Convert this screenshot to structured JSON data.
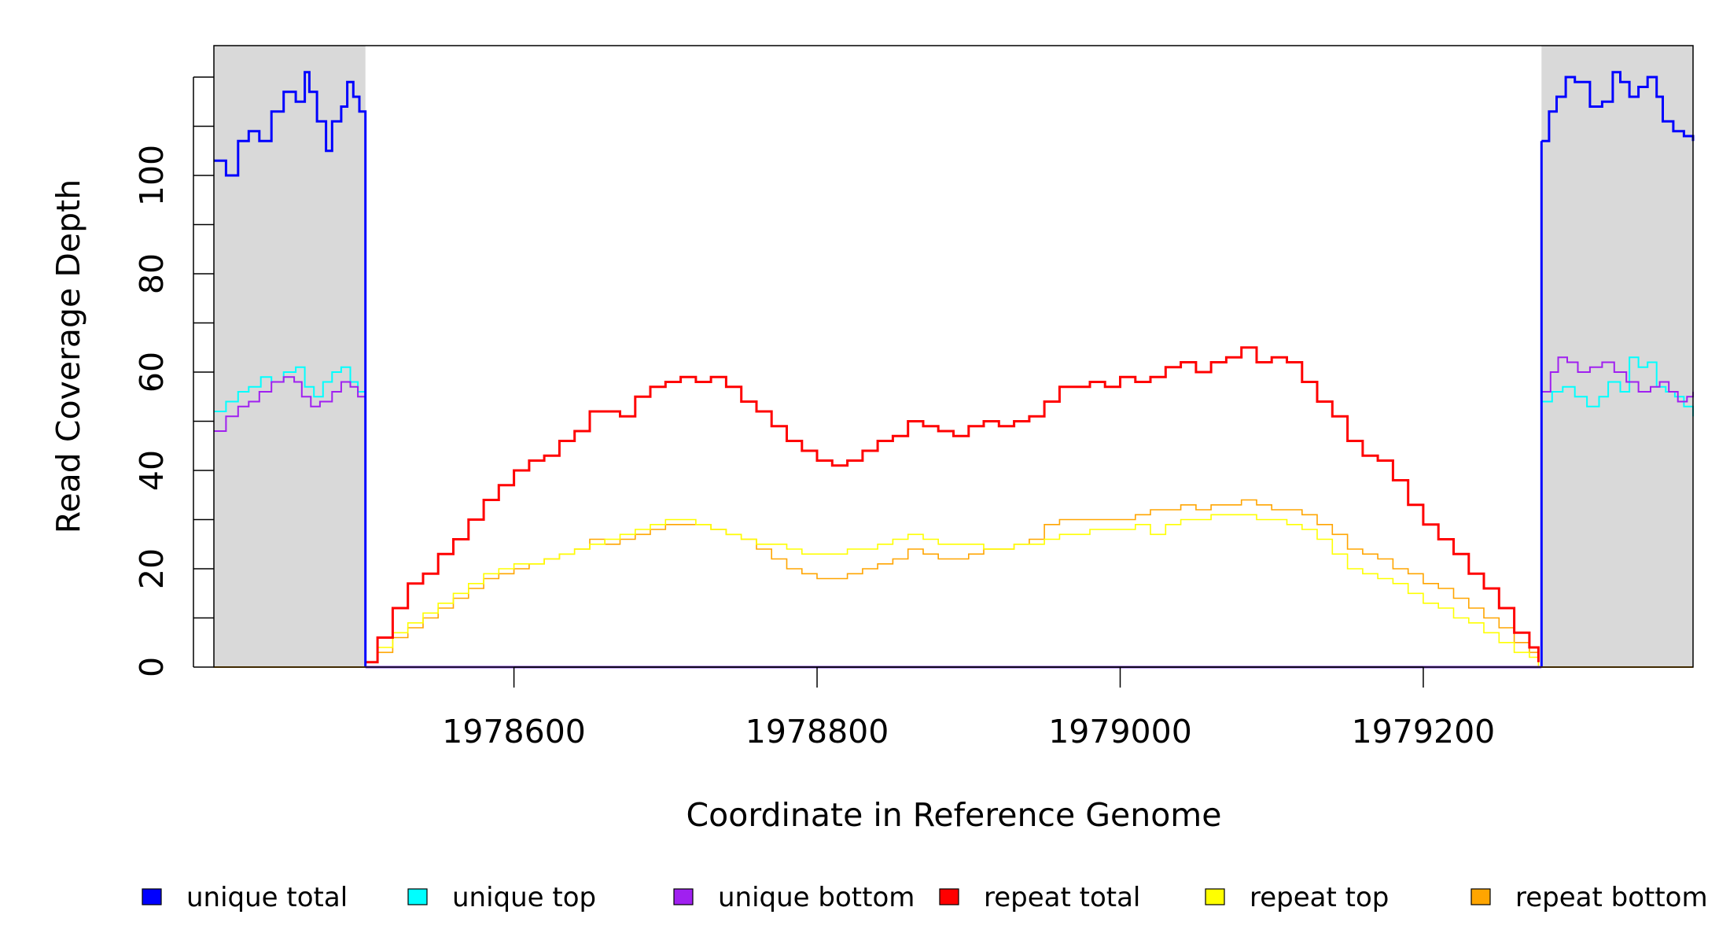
{
  "chart_data": {
    "type": "line",
    "title": "",
    "xlabel": "Coordinate in Reference Genome",
    "ylabel": "Read Coverage Depth",
    "xlim": [
      1978402,
      1979378
    ],
    "ylim": [
      0,
      126
    ],
    "x_ticks": [
      1978600,
      1978800,
      1979000,
      1979200
    ],
    "y_ticks": [
      0,
      20,
      40,
      60,
      80,
      100
    ],
    "grid": false,
    "legend_position": "bottom",
    "shaded_regions": [
      {
        "from": 1978402,
        "to": 1978502,
        "color": "#d9d9d9"
      },
      {
        "from": 1979278,
        "to": 1979378,
        "color": "#d9d9d9"
      }
    ],
    "series": [
      {
        "name": "unique total",
        "color": "#0000ff",
        "width": 3,
        "segments": [
          {
            "x": [
              1978402,
              1978410,
              1978418,
              1978425,
              1978432,
              1978440,
              1978448,
              1978456,
              1978462,
              1978465,
              1978470,
              1978476,
              1978480,
              1978486,
              1978490,
              1978494,
              1978498,
              1978502
            ],
            "y": [
              103,
              100,
              107,
              109,
              107,
              113,
              117,
              115,
              121,
              117,
              111,
              105,
              111,
              114,
              119,
              116,
              113,
              109
            ]
          },
          {
            "x": [
              1978502,
              1978502
            ],
            "y": [
              109,
              0
            ]
          },
          {
            "x": [
              1979278,
              1979278
            ],
            "y": [
              0,
              107
            ]
          },
          {
            "x": [
              1979278,
              1979283,
              1979288,
              1979294,
              1979300,
              1979310,
              1979318,
              1979325,
              1979330,
              1979336,
              1979342,
              1979348,
              1979354,
              1979358,
              1979365,
              1979372,
              1979378
            ],
            "y": [
              107,
              113,
              116,
              120,
              119,
              114,
              115,
              121,
              119,
              116,
              118,
              120,
              116,
              111,
              109,
              108,
              107
            ]
          }
        ]
      },
      {
        "name": "unique top",
        "color": "#00ffff",
        "width": 2,
        "segments": [
          {
            "x": [
              1978402,
              1978410,
              1978418,
              1978425,
              1978433,
              1978440,
              1978448,
              1978456,
              1978462,
              1978468,
              1978474,
              1978480,
              1978486,
              1978492,
              1978497,
              1978502
            ],
            "y": [
              52,
              54,
              56,
              57,
              59,
              58,
              60,
              61,
              57,
              55,
              58,
              60,
              61,
              58,
              56,
              55
            ]
          },
          {
            "x": [
              1978502,
              1978502
            ],
            "y": [
              55,
              0
            ]
          },
          {
            "x": [
              1979278,
              1979278
            ],
            "y": [
              0,
              54
            ]
          },
          {
            "x": [
              1979278,
              1979285,
              1979292,
              1979300,
              1979308,
              1979316,
              1979322,
              1979330,
              1979336,
              1979342,
              1979348,
              1979354,
              1979360,
              1979366,
              1979372,
              1979378
            ],
            "y": [
              54,
              56,
              57,
              55,
              53,
              55,
              58,
              56,
              63,
              61,
              62,
              57,
              56,
              55,
              53,
              51
            ]
          }
        ]
      },
      {
        "name": "unique bottom",
        "color": "#a020f0",
        "width": 2,
        "segments": [
          {
            "x": [
              1978402,
              1978410,
              1978418,
              1978425,
              1978432,
              1978440,
              1978448,
              1978455,
              1978460,
              1978466,
              1978472,
              1978480,
              1978486,
              1978492,
              1978497,
              1978502
            ],
            "y": [
              48,
              51,
              53,
              54,
              56,
              58,
              59,
              58,
              55,
              53,
              54,
              56,
              58,
              57,
              55,
              54
            ]
          },
          {
            "x": [
              1978502,
              1978502
            ],
            "y": [
              54,
              0
            ]
          },
          {
            "x": [
              1979278,
              1979278
            ],
            "y": [
              0,
              56
            ]
          },
          {
            "x": [
              1979278,
              1979284,
              1979289,
              1979295,
              1979302,
              1979310,
              1979318,
              1979326,
              1979334,
              1979342,
              1979350,
              1979356,
              1979362,
              1979368,
              1979374,
              1979378
            ],
            "y": [
              56,
              60,
              63,
              62,
              60,
              61,
              62,
              60,
              58,
              56,
              57,
              58,
              56,
              54,
              55,
              56
            ]
          }
        ]
      },
      {
        "name": "repeat total",
        "color": "#ff0000",
        "width": 3,
        "segments": [
          {
            "x": [
              1978502,
              1978510,
              1978520,
              1978530,
              1978540,
              1978550,
              1978560,
              1978570,
              1978580,
              1978590,
              1978600,
              1978610,
              1978620,
              1978630,
              1978640,
              1978650,
              1978660,
              1978670,
              1978680,
              1978690,
              1978700,
              1978710,
              1978720,
              1978730,
              1978740,
              1978750,
              1978760,
              1978770,
              1978780,
              1978790,
              1978800,
              1978810,
              1978820,
              1978830,
              1978840,
              1978850,
              1978860,
              1978870,
              1978880,
              1978890,
              1978900,
              1978910,
              1978920,
              1978930,
              1978940,
              1978950,
              1978960,
              1978970,
              1978980,
              1978990,
              1979000,
              1979010,
              1979020,
              1979030,
              1979040,
              1979050,
              1979060,
              1979070,
              1979080,
              1979090,
              1979100,
              1979110,
              1979120,
              1979130,
              1979140,
              1979150,
              1979160,
              1979170,
              1979180,
              1979190,
              1979200,
              1979210,
              1979220,
              1979230,
              1979240,
              1979250,
              1979260,
              1979270,
              1979276
            ],
            "y": [
              1,
              6,
              12,
              17,
              19,
              23,
              26,
              30,
              34,
              37,
              40,
              42,
              43,
              46,
              48,
              52,
              52,
              51,
              55,
              57,
              58,
              59,
              58,
              59,
              57,
              54,
              52,
              49,
              46,
              44,
              42,
              41,
              42,
              44,
              46,
              47,
              50,
              49,
              48,
              47,
              49,
              50,
              49,
              50,
              51,
              54,
              57,
              57,
              58,
              57,
              59,
              58,
              59,
              61,
              62,
              60,
              62,
              63,
              65,
              62,
              63,
              62,
              58,
              54,
              51,
              46,
              43,
              42,
              38,
              33,
              29,
              26,
              23,
              19,
              16,
              12,
              7,
              4,
              1
            ]
          }
        ]
      },
      {
        "name": "repeat top",
        "color": "#ffff00",
        "width": 1.6,
        "segments": [
          {
            "x": [
              1978502,
              1978510,
              1978520,
              1978530,
              1978540,
              1978550,
              1978560,
              1978570,
              1978580,
              1978590,
              1978600,
              1978610,
              1978620,
              1978630,
              1978640,
              1978650,
              1978660,
              1978670,
              1978680,
              1978690,
              1978700,
              1978710,
              1978720,
              1978730,
              1978740,
              1978750,
              1978760,
              1978770,
              1978780,
              1978790,
              1978800,
              1978810,
              1978820,
              1978830,
              1978840,
              1978850,
              1978860,
              1978870,
              1978880,
              1978890,
              1978900,
              1978910,
              1978920,
              1978930,
              1978940,
              1978950,
              1978960,
              1978970,
              1978980,
              1978990,
              1979000,
              1979010,
              1979020,
              1979030,
              1979040,
              1979050,
              1979060,
              1979070,
              1979080,
              1979090,
              1979100,
              1979110,
              1979120,
              1979130,
              1979140,
              1979150,
              1979160,
              1979170,
              1979180,
              1979190,
              1979200,
              1979210,
              1979220,
              1979230,
              1979240,
              1979250,
              1979260,
              1979270,
              1979276
            ],
            "y": [
              1,
              4,
              7,
              9,
              11,
              13,
              15,
              17,
              19,
              20,
              21,
              21,
              22,
              23,
              24,
              25,
              26,
              27,
              28,
              29,
              30,
              30,
              29,
              28,
              27,
              26,
              25,
              25,
              24,
              23,
              23,
              23,
              24,
              24,
              25,
              26,
              27,
              26,
              25,
              25,
              25,
              24,
              24,
              25,
              25,
              26,
              27,
              27,
              28,
              28,
              28,
              29,
              27,
              29,
              30,
              30,
              31,
              31,
              31,
              30,
              30,
              29,
              28,
              26,
              23,
              20,
              19,
              18,
              17,
              15,
              13,
              12,
              10,
              9,
              7,
              5,
              3,
              2,
              0
            ]
          }
        ]
      },
      {
        "name": "repeat bottom",
        "color": "#ffa500",
        "width": 1.6,
        "segments": [
          {
            "x": [
              1978502,
              1978510,
              1978520,
              1978530,
              1978540,
              1978550,
              1978560,
              1978570,
              1978580,
              1978590,
              1978600,
              1978610,
              1978620,
              1978630,
              1978640,
              1978650,
              1978660,
              1978670,
              1978680,
              1978690,
              1978700,
              1978710,
              1978720,
              1978730,
              1978740,
              1978750,
              1978760,
              1978770,
              1978780,
              1978790,
              1978800,
              1978810,
              1978820,
              1978830,
              1978840,
              1978850,
              1978860,
              1978870,
              1978880,
              1978890,
              1978900,
              1978910,
              1978920,
              1978930,
              1978940,
              1978950,
              1978960,
              1978970,
              1978980,
              1978990,
              1979000,
              1979010,
              1979020,
              1979030,
              1979040,
              1979050,
              1979060,
              1979070,
              1979080,
              1979090,
              1979100,
              1979110,
              1979120,
              1979130,
              1979140,
              1979150,
              1979160,
              1979170,
              1979180,
              1979190,
              1979200,
              1979210,
              1979220,
              1979230,
              1979240,
              1979250,
              1979260,
              1979270,
              1979276
            ],
            "y": [
              1,
              3,
              6,
              8,
              10,
              12,
              14,
              16,
              18,
              19,
              20,
              21,
              22,
              23,
              24,
              26,
              25,
              26,
              27,
              28,
              29,
              29,
              29,
              28,
              27,
              26,
              24,
              22,
              20,
              19,
              18,
              18,
              19,
              20,
              21,
              22,
              24,
              23,
              22,
              22,
              23,
              24,
              24,
              25,
              26,
              29,
              30,
              30,
              30,
              30,
              30,
              31,
              32,
              32,
              33,
              32,
              33,
              33,
              34,
              33,
              32,
              32,
              31,
              29,
              27,
              24,
              23,
              22,
              20,
              19,
              17,
              16,
              14,
              12,
              10,
              8,
              5,
              3,
              1
            ]
          }
        ]
      }
    ]
  }
}
